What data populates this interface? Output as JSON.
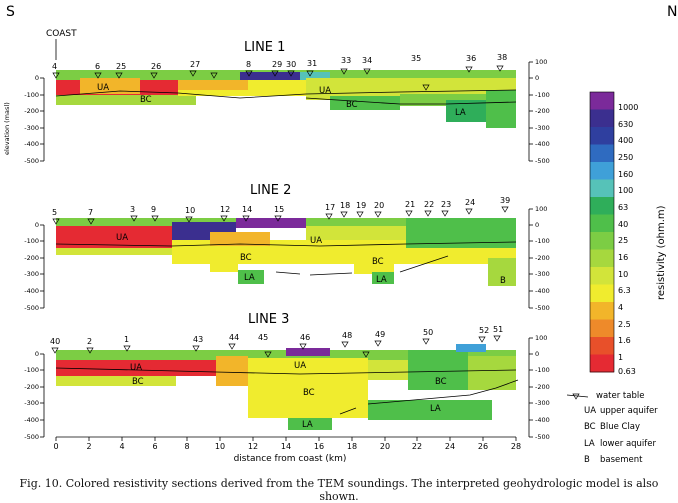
{
  "header": {
    "south": "S",
    "north": "N",
    "coast": "COAST"
  },
  "sections": [
    {
      "title": "LINE 1",
      "soundings": [
        "4",
        "6",
        "25",
        "26",
        "27",
        "8",
        "29",
        "30",
        "31",
        "33",
        "34",
        "35",
        "36",
        "38"
      ],
      "units": [
        "UA",
        "BC",
        "UA",
        "BC",
        "LA"
      ],
      "left_ticks": [
        "0",
        "-100",
        "-200",
        "-300",
        "-400",
        "-500"
      ],
      "right_ticks": [
        "100",
        "0",
        "-100",
        "-200",
        "-300",
        "-400",
        "-500"
      ],
      "left_axis_label": "elevation (masl)"
    },
    {
      "title": "LINE 2",
      "soundings": [
        "5",
        "7",
        "3",
        "9",
        "10",
        "12",
        "14",
        "15",
        "17",
        "18",
        "19",
        "20",
        "21",
        "22",
        "23",
        "24",
        "39"
      ],
      "units": [
        "UA",
        "UA",
        "BC",
        "LA",
        "BC",
        "LA",
        "B"
      ],
      "left_ticks": [
        "0",
        "-100",
        "-200",
        "-300",
        "-400",
        "-500"
      ],
      "right_ticks": [
        "100",
        "0",
        "-100",
        "-200",
        "-300",
        "-400",
        "-500"
      ]
    },
    {
      "title": "LINE 3",
      "soundings": [
        "40",
        "2",
        "1",
        "43",
        "44",
        "45",
        "46",
        "48",
        "49",
        "50",
        "52",
        "51"
      ],
      "units": [
        "UA",
        "BC",
        "UA",
        "BC",
        "LA",
        "BC",
        "LA"
      ],
      "left_ticks": [
        "0",
        "-100",
        "-200",
        "-300",
        "-400",
        "-500"
      ],
      "right_ticks": [
        "100",
        "0",
        "-100",
        "-200",
        "-300",
        "-400",
        "-500"
      ]
    }
  ],
  "x_axis": {
    "ticks": [
      "0",
      "2",
      "4",
      "6",
      "8",
      "10",
      "12",
      "14",
      "16",
      "18",
      "20",
      "22",
      "24",
      "26",
      "28"
    ],
    "label": "distance from coast (km)"
  },
  "colorbar": {
    "label": "resistivity (ohm.m)",
    "ticks": [
      "1000",
      "630",
      "400",
      "250",
      "160",
      "100",
      "63",
      "40",
      "25",
      "16",
      "10",
      "6.3",
      "4",
      "2.5",
      "1.6",
      "1",
      "0.63"
    ],
    "colors": [
      "#7b2a9a",
      "#3b2f8f",
      "#2f3f9f",
      "#2f6bc0",
      "#3fa0d8",
      "#56c2b8",
      "#2fae5a",
      "#4fbf4a",
      "#7ccd44",
      "#a6d83e",
      "#d2e43a",
      "#f0ec2e",
      "#f2b52a",
      "#ee8a2a",
      "#e8502a",
      "#e52a33"
    ]
  },
  "legend": [
    {
      "symbol": "water table",
      "desc": "water table"
    },
    {
      "symbol": "UA",
      "desc": "upper aquifer"
    },
    {
      "symbol": "BC",
      "desc": "Blue Clay"
    },
    {
      "symbol": "LA",
      "desc": "lower aquifer"
    },
    {
      "symbol": "B",
      "desc": "basement"
    }
  ],
  "caption": "Fig. 10. Colored resistivity sections derived from the TEM soundings. The interpreted geohydrologic model is also shown."
}
